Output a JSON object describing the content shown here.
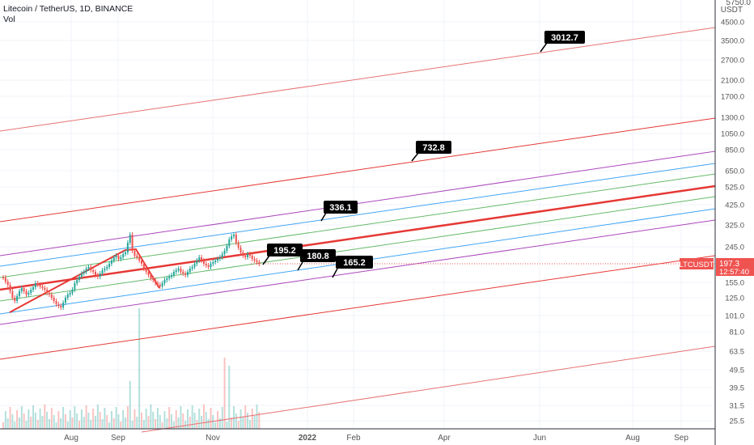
{
  "header": {
    "symbol_line": "Litecoin / TetherUS, 1D, BINANCE",
    "indicator": "Vol"
  },
  "price_axis": {
    "currency": "USDT",
    "top_partial": "5750.0",
    "ticks": [
      "4500.0",
      "3500.0",
      "2700.0",
      "2100.0",
      "1700.0",
      "1300.0",
      "1050.0",
      "850.0",
      "650.0",
      "525.0",
      "425.0",
      "325.0",
      "245.0",
      "155.0",
      "125.0",
      "101.0",
      "81.0",
      "63.5",
      "49.5",
      "39.5",
      "31.5",
      "25.5"
    ]
  },
  "time_axis": {
    "ticks": [
      "Aug",
      "Sep",
      "Nov",
      "2022",
      "Feb",
      "Apr",
      "Jun",
      "Aug",
      "Sep"
    ]
  },
  "price_badge": {
    "symbol": "LTCUSDT",
    "price": "197.3",
    "countdown": "12:57:40"
  },
  "callouts": [
    "3012.7",
    "732.8",
    "336.1",
    "195.2",
    "180.8",
    "165.2"
  ],
  "colors": {
    "red_line": "#e53935",
    "purple_line": "#ab47bc",
    "blue_line": "#42a5f5",
    "green_line": "#66bb6a",
    "candle_up": "#26a69a",
    "candle_down": "#ef5350",
    "badge": "#ef5350"
  },
  "chart_data": {
    "type": "candlestick",
    "title": "Litecoin / TetherUS, 1D, BINANCE",
    "y_scale": "log",
    "ylim": [
      22,
      6000
    ],
    "last_price": 197.3,
    "callout_levels": [
      3012.7,
      732.8,
      336.1,
      195.2,
      180.8,
      165.2
    ],
    "drawn_lines": [
      {
        "color": "red",
        "role": "regression midline (thick)"
      },
      {
        "color": "purple",
        "role": "channel bounds"
      },
      {
        "color": "blue",
        "role": "channel bounds"
      },
      {
        "color": "green",
        "role": "channel bounds"
      },
      {
        "color": "red",
        "role": "outer extensions"
      }
    ],
    "grid": true,
    "legend": "none"
  }
}
